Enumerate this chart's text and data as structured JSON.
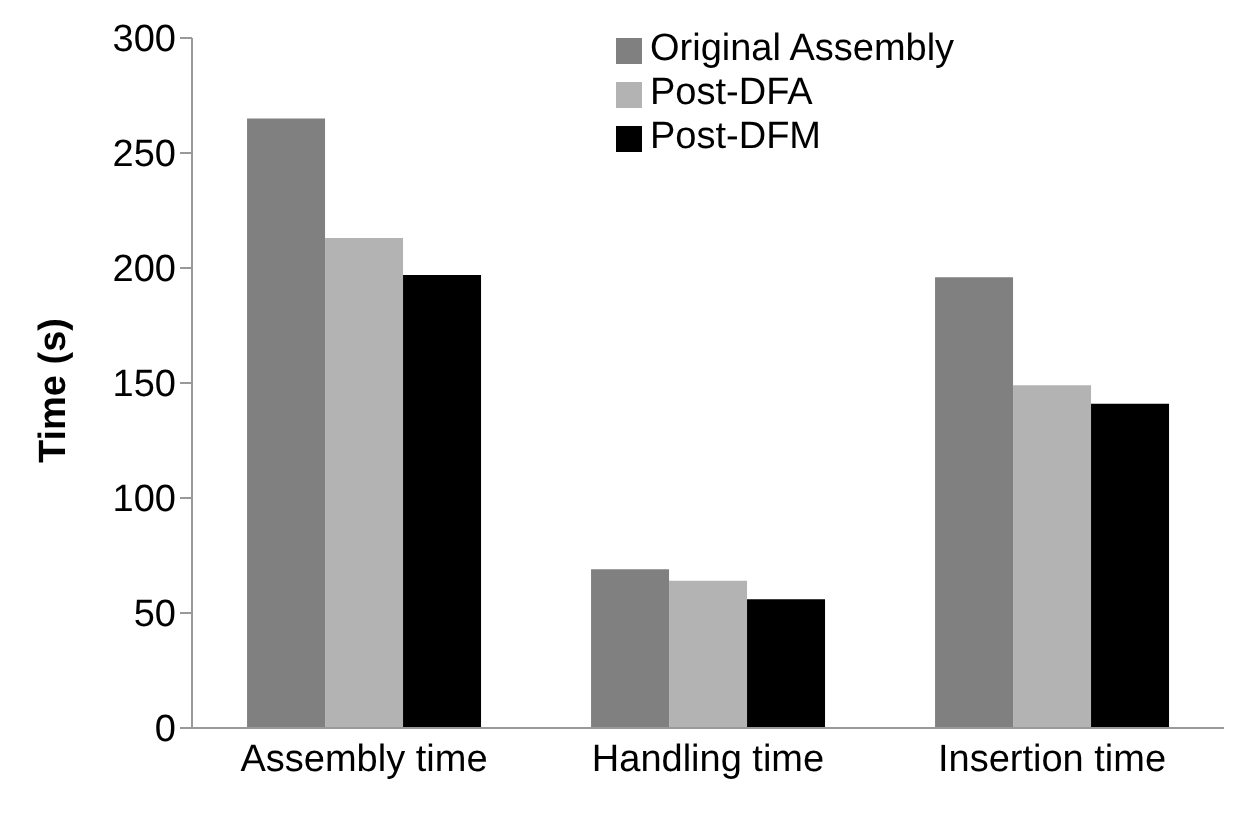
{
  "chart_data": {
    "type": "bar",
    "ylabel": "Time (s)",
    "categories": [
      "Assembly time",
      "Handling time",
      "Insertion time"
    ],
    "series": [
      {
        "name": "Original Assembly",
        "color": "#808080",
        "values": [
          265,
          69,
          196
        ]
      },
      {
        "name": "Post-DFA",
        "color": "#b3b3b3",
        "values": [
          213,
          64,
          149
        ]
      },
      {
        "name": "Post-DFM",
        "color": "#000000",
        "values": [
          197,
          56,
          141
        ]
      }
    ],
    "ylim": [
      0,
      300
    ],
    "yticks": [
      0,
      50,
      100,
      150,
      200,
      250,
      300
    ],
    "grid": false,
    "legend": "top right"
  }
}
